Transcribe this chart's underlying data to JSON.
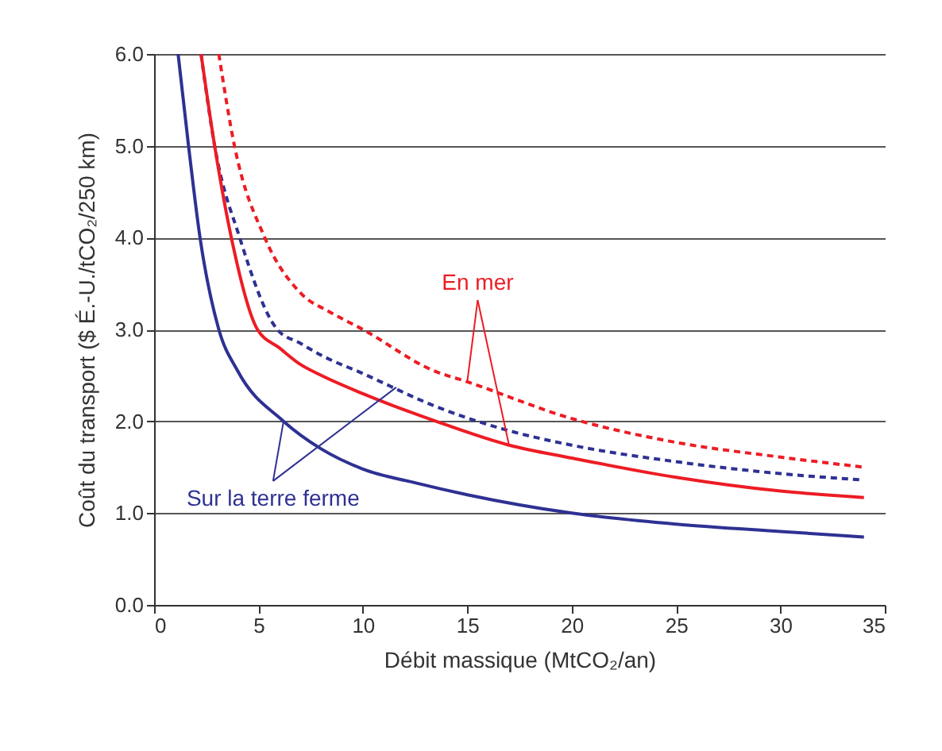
{
  "chart_data": {
    "type": "line",
    "xlabel": "Débit massique (MtCO₂/an)",
    "ylabel": "Coût du transport ($ É.-U./tCO₂/250 km)",
    "xlim": [
      0,
      35
    ],
    "xticks": [
      0,
      5,
      10,
      15,
      20,
      25,
      30,
      35
    ],
    "ylim": [
      0,
      6
    ],
    "yticks": [
      {
        "value": 0,
        "label": "0.0"
      },
      {
        "value": 1,
        "label": "1.0"
      },
      {
        "value": 2,
        "label": "2.0"
      },
      {
        "value": 3,
        "label": "3.0"
      },
      {
        "value": 4,
        "label": "4.0"
      },
      {
        "value": 5,
        "label": "5.0"
      },
      {
        "value": 6,
        "label": "6.0"
      }
    ],
    "grid": "y",
    "marker": "none",
    "series": [
      {
        "color": "#2e3192",
        "line_style": "solid",
        "x": [
          1.15,
          1.65,
          2.2,
          3.1,
          4,
          6.2,
          8,
          10,
          12.5,
          15,
          20,
          25,
          30,
          34
        ],
        "values": [
          6,
          5,
          4,
          3,
          2.55,
          2,
          1.7,
          1.48,
          1.33,
          1.2,
          1.0,
          0.88,
          0.8,
          0.74
        ]
      },
      {
        "color": "#2e3192",
        "line_style": "dashed",
        "x": [
          2.25,
          2.9,
          4.1,
          5.9,
          7,
          8,
          10,
          13.4,
          16.8,
          20,
          25,
          30,
          34
        ],
        "values": [
          6,
          5,
          4,
          3,
          2.85,
          2.72,
          2.52,
          2.17,
          1.91,
          1.74,
          1.56,
          1.43,
          1.36
        ]
      },
      {
        "color": "#ed1c24",
        "line_style": "solid",
        "x": [
          2.25,
          2.9,
          3.7,
          4.95,
          6,
          7,
          8,
          10,
          13.5,
          17,
          20,
          25,
          30,
          34
        ],
        "values": [
          6,
          5,
          4,
          3,
          2.8,
          2.62,
          2.5,
          2.3,
          2.0,
          1.74,
          1.6,
          1.39,
          1.24,
          1.17
        ]
      },
      {
        "color": "#ed1c24",
        "line_style": "dashed",
        "x": [
          3.1,
          3.85,
          5.3,
          7,
          8.5,
          10,
          13.4,
          15,
          20,
          25,
          30,
          34
        ],
        "values": [
          6,
          5,
          4,
          3.4,
          3.18,
          3.0,
          2.55,
          2.43,
          2.03,
          1.77,
          1.61,
          1.5
        ]
      }
    ],
    "annotations": [
      {
        "text": "En mer",
        "x": 15,
        "y": 2.43
      },
      {
        "text": "Sur la terre ferme",
        "x": 6.2,
        "y": 2.0
      }
    ]
  }
}
